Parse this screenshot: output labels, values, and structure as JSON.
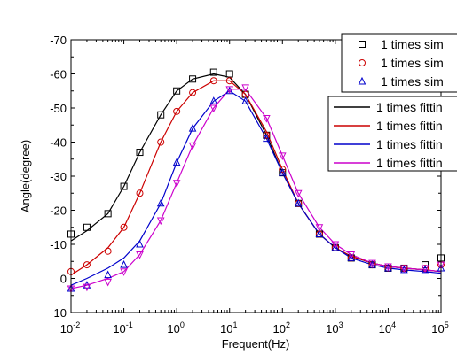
{
  "chart_data": {
    "type": "scatter",
    "xlabel": "Frequent(Hz)",
    "ylabel": "Angle(degree)",
    "x_scale": "log",
    "xlim": [
      0.01,
      100000
    ],
    "ylim": [
      10,
      -70
    ],
    "x_ticks": [
      {
        "value": 0.01,
        "base": "10",
        "exp": "-2"
      },
      {
        "value": 0.1,
        "base": "10",
        "exp": "-1"
      },
      {
        "value": 1,
        "base": "10",
        "exp": "0"
      },
      {
        "value": 10,
        "base": "10",
        "exp": "1"
      },
      {
        "value": 100,
        "base": "10",
        "exp": "2"
      },
      {
        "value": 1000,
        "base": "10",
        "exp": "3"
      },
      {
        "value": 10000,
        "base": "10",
        "exp": "4"
      },
      {
        "value": 100000,
        "base": "10",
        "exp": "5"
      }
    ],
    "y_ticks": [
      {
        "value": 10,
        "label": "10"
      },
      {
        "value": 0,
        "label": "0"
      },
      {
        "value": -10,
        "label": "-10"
      },
      {
        "value": -20,
        "label": "-20"
      },
      {
        "value": -30,
        "label": "-30"
      },
      {
        "value": -40,
        "label": "-40"
      },
      {
        "value": -50,
        "label": "-50"
      },
      {
        "value": -60,
        "label": "-60"
      },
      {
        "value": -70,
        "label": "-70"
      }
    ],
    "legend_top": [
      {
        "label": "1 times sim",
        "marker": "square",
        "color": "#000000"
      },
      {
        "label": "1 times sim",
        "marker": "circle",
        "color": "#cc0000"
      },
      {
        "label": "1 times sim",
        "marker": "triangle",
        "color": "#0000cc"
      }
    ],
    "legend_bottom": [
      {
        "label": "1 times fittin",
        "color": "#000000"
      },
      {
        "label": "1 times fittin",
        "color": "#cc0000"
      },
      {
        "label": "1 times fittin",
        "color": "#0000cc"
      },
      {
        "label": "1 times fittin",
        "color": "#cc00cc"
      }
    ],
    "series": [
      {
        "marker": "square",
        "color": "#000000",
        "x": [
          0.01,
          0.02,
          0.05,
          0.1,
          0.2,
          0.5,
          1,
          2,
          5,
          10,
          20,
          50,
          100,
          200,
          500,
          1000,
          2000,
          5000,
          10000,
          20000,
          50000,
          100000
        ],
        "y": [
          -13,
          -15,
          -19,
          -27,
          -37,
          -48,
          -55,
          -58.5,
          -60.5,
          -60,
          -54,
          -42,
          -31,
          -22,
          -13,
          -9,
          -6,
          -4,
          -3,
          -3,
          -4,
          -6
        ]
      },
      {
        "marker": "circle",
        "color": "#cc0000",
        "x": [
          0.01,
          0.02,
          0.05,
          0.1,
          0.2,
          0.5,
          1,
          2,
          5,
          10,
          20,
          50,
          100,
          200,
          500,
          1000,
          2000,
          5000,
          10000,
          20000,
          50000,
          100000
        ],
        "y": [
          -2,
          -4,
          -8,
          -15,
          -25,
          -40,
          -49,
          -54.5,
          -58,
          -58,
          -54,
          -42,
          -32,
          -22,
          -13,
          -9,
          -6,
          -4,
          -3,
          -3,
          -3,
          -4
        ]
      },
      {
        "marker": "triangle",
        "color": "#0000cc",
        "x": [
          0.01,
          0.02,
          0.05,
          0.1,
          0.2,
          0.5,
          1,
          2,
          5,
          10,
          20,
          50,
          100,
          200,
          500,
          1000,
          2000,
          5000,
          10000,
          20000,
          50000,
          100000
        ],
        "y": [
          3,
          2,
          -1,
          -4,
          -10,
          -22,
          -34,
          -44,
          -52,
          -55,
          -52,
          -41,
          -31,
          -22,
          -13,
          -9,
          -6,
          -4,
          -3,
          -2.5,
          -2.5,
          -3
        ]
      },
      {
        "marker": "triangle-down",
        "color": "#cc00cc",
        "x": [
          0.01,
          0.02,
          0.05,
          0.1,
          0.2,
          0.5,
          1,
          2,
          5,
          10,
          20,
          50,
          100,
          200,
          500,
          1000,
          2000,
          5000,
          10000,
          20000,
          50000,
          100000
        ],
        "y": [
          3,
          2.5,
          1,
          -2,
          -7,
          -17,
          -28,
          -39,
          -50,
          -55.5,
          -56,
          -47,
          -36,
          -25,
          -15,
          -10,
          -7,
          -4.5,
          -3.5,
          -3,
          -3,
          -4
        ]
      }
    ],
    "fits": [
      {
        "color": "#000000",
        "x": [
          0.01,
          0.02,
          0.05,
          0.1,
          0.2,
          0.5,
          1,
          2,
          5,
          10,
          20,
          50,
          100,
          200,
          500,
          1000,
          2000,
          5000,
          10000,
          20000,
          50000,
          100000
        ],
        "y": [
          -11,
          -14,
          -19,
          -27,
          -37,
          -48,
          -55,
          -58.5,
          -60,
          -59,
          -54,
          -42,
          -31,
          -22,
          -13,
          -9,
          -6.5,
          -4.5,
          -3.5,
          -3,
          -2.5,
          -2
        ]
      },
      {
        "color": "#cc0000",
        "x": [
          0.01,
          0.02,
          0.05,
          0.1,
          0.2,
          0.5,
          1,
          2,
          5,
          10,
          20,
          50,
          100,
          200,
          500,
          1000,
          2000,
          5000,
          10000,
          20000,
          50000,
          100000
        ],
        "y": [
          -1,
          -4,
          -9,
          -15,
          -25,
          -40,
          -49,
          -54.5,
          -58,
          -58,
          -54,
          -43,
          -32,
          -22,
          -13,
          -9,
          -6.5,
          -4.5,
          -3.5,
          -3,
          -2.5,
          -2
        ]
      },
      {
        "color": "#0000cc",
        "x": [
          0.01,
          0.02,
          0.05,
          0.1,
          0.2,
          0.5,
          1,
          2,
          5,
          10,
          20,
          50,
          100,
          200,
          500,
          1000,
          2000,
          5000,
          10000,
          20000,
          50000,
          100000
        ],
        "y": [
          2,
          0,
          -3,
          -6,
          -11,
          -22,
          -34,
          -44,
          -52,
          -55,
          -52,
          -41,
          -31,
          -22,
          -13,
          -9,
          -6,
          -4,
          -3,
          -2.5,
          -2,
          -1.5
        ]
      },
      {
        "color": "#cc00cc",
        "x": [
          0.01,
          0.02,
          0.05,
          0.1,
          0.2,
          0.5,
          1,
          2,
          5,
          10,
          20,
          50,
          100,
          200,
          500,
          1000,
          2000,
          5000,
          10000,
          20000,
          50000,
          100000
        ],
        "y": [
          3,
          2,
          0,
          -2,
          -7,
          -17,
          -28,
          -39,
          -50,
          -55.5,
          -55.5,
          -47,
          -36,
          -25,
          -15,
          -10,
          -7,
          -4.5,
          -3.5,
          -3,
          -2.5,
          -2
        ]
      }
    ]
  }
}
